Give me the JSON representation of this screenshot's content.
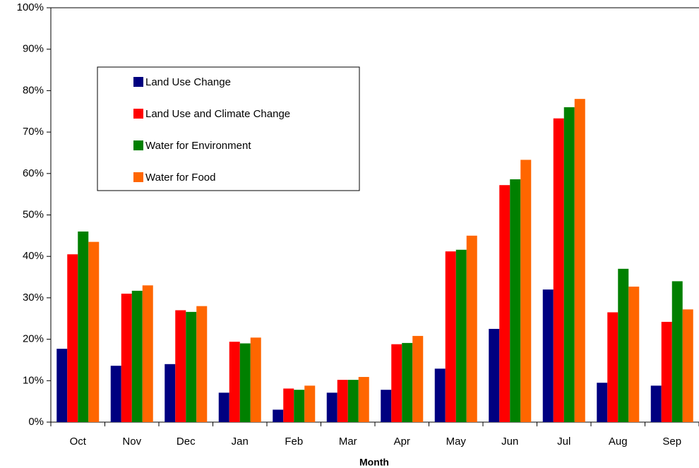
{
  "chart_data": {
    "type": "bar",
    "x_label": "Month",
    "categories": [
      "Oct",
      "Nov",
      "Dec",
      "Jan",
      "Feb",
      "Mar",
      "Apr",
      "May",
      "Jun",
      "Jul",
      "Aug",
      "Sep"
    ],
    "series": [
      {
        "name": "Land Use Change",
        "color": "#000080",
        "values": [
          17.7,
          13.6,
          14,
          7.1,
          3,
          7.1,
          7.8,
          12.9,
          22.5,
          32,
          9.5,
          8.8
        ]
      },
      {
        "name": "Land Use and Climate Change",
        "color": "#ff0000",
        "values": [
          40.5,
          31,
          27,
          19.4,
          8.1,
          10.2,
          18.8,
          41.2,
          57.2,
          73.3,
          26.5,
          24.2
        ]
      },
      {
        "name": "Water for Environment",
        "color": "#008000",
        "values": [
          46,
          31.7,
          26.6,
          19,
          7.8,
          10.2,
          19.1,
          41.6,
          58.6,
          76,
          37,
          34
        ]
      },
      {
        "name": "Water for Food",
        "color": "#ff6600",
        "values": [
          43.5,
          33,
          28,
          20.4,
          8.8,
          10.9,
          20.8,
          45,
          63.3,
          78,
          32.7,
          27.2
        ]
      }
    ],
    "ylim": [
      0,
      100
    ],
    "yticks": [
      {
        "value": 0,
        "label": "0%"
      },
      {
        "value": 10,
        "label": "10%"
      },
      {
        "value": 20,
        "label": "20%"
      },
      {
        "value": 30,
        "label": "30%"
      },
      {
        "value": 40,
        "label": "40%"
      },
      {
        "value": 50,
        "label": "50%"
      },
      {
        "value": 60,
        "label": "60%"
      },
      {
        "value": 70,
        "label": "70%"
      },
      {
        "value": 80,
        "label": "80%"
      },
      {
        "value": 90,
        "label": "90%"
      },
      {
        "value": 100,
        "label": "100%"
      }
    ],
    "grid": false,
    "legend": "upper left"
  }
}
